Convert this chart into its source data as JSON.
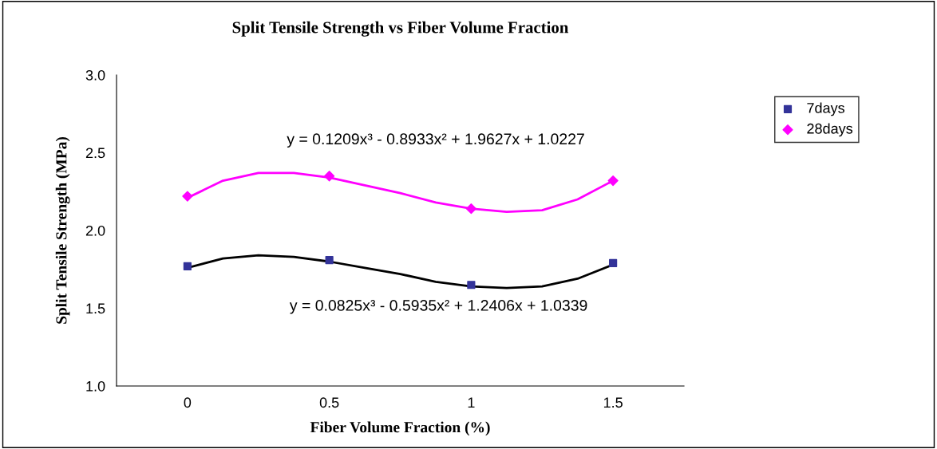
{
  "chart_data": {
    "type": "scatter",
    "title": "Split Tensile Strength vs Fiber Volume Fraction",
    "xlabel": "Fiber Volume Fraction (%)",
    "ylabel": "Split Tensile Strength (MPa)",
    "x": [
      0,
      0.5,
      1,
      1.5
    ],
    "series": [
      {
        "name": "7days",
        "color": "#333399",
        "marker": "square",
        "values": [
          1.77,
          1.81,
          1.65,
          1.79
        ]
      },
      {
        "name": "28days",
        "color": "#ff00ff",
        "marker": "diamond",
        "values": [
          2.22,
          2.35,
          2.14,
          2.32
        ]
      },
      {
        "type": "line",
        "color": "#000000",
        "x": [
          0,
          0.125,
          0.25,
          0.375,
          0.5,
          0.625,
          0.75,
          0.875,
          1,
          1.125,
          1.25,
          1.375,
          1.5
        ],
        "values": [
          1.76,
          1.82,
          1.84,
          1.83,
          1.8,
          1.76,
          1.72,
          1.67,
          1.64,
          1.63,
          1.64,
          1.69,
          1.78
        ]
      },
      {
        "type": "line",
        "color": "#ff00ff",
        "x": [
          0,
          0.125,
          0.25,
          0.375,
          0.5,
          0.625,
          0.75,
          0.875,
          1,
          1.125,
          1.25,
          1.375,
          1.5
        ],
        "values": [
          2.21,
          2.32,
          2.37,
          2.37,
          2.34,
          2.29,
          2.24,
          2.18,
          2.14,
          2.12,
          2.13,
          2.2,
          2.32
        ]
      }
    ],
    "annotations": [
      "y = 0.1209x³ - 0.8933x² + 1.9627x + 1.0227",
      "y = 0.0825x³ - 0.5935x² + 1.2406x + 1.0339"
    ],
    "xlim": [
      -0.25,
      1.75
    ],
    "xticks": [
      0,
      0.5,
      1,
      1.5
    ],
    "ylim": [
      1.0,
      3.0
    ],
    "yticks": [
      {
        "value": 1.0,
        "label": "1.0"
      },
      {
        "value": 1.5,
        "label": "1.5"
      },
      {
        "value": 2.0,
        "label": "2.0"
      },
      {
        "value": 2.5,
        "label": "2.5"
      },
      {
        "value": 3.0,
        "label": "3.0"
      }
    ],
    "grid": false,
    "legend": "top right"
  }
}
